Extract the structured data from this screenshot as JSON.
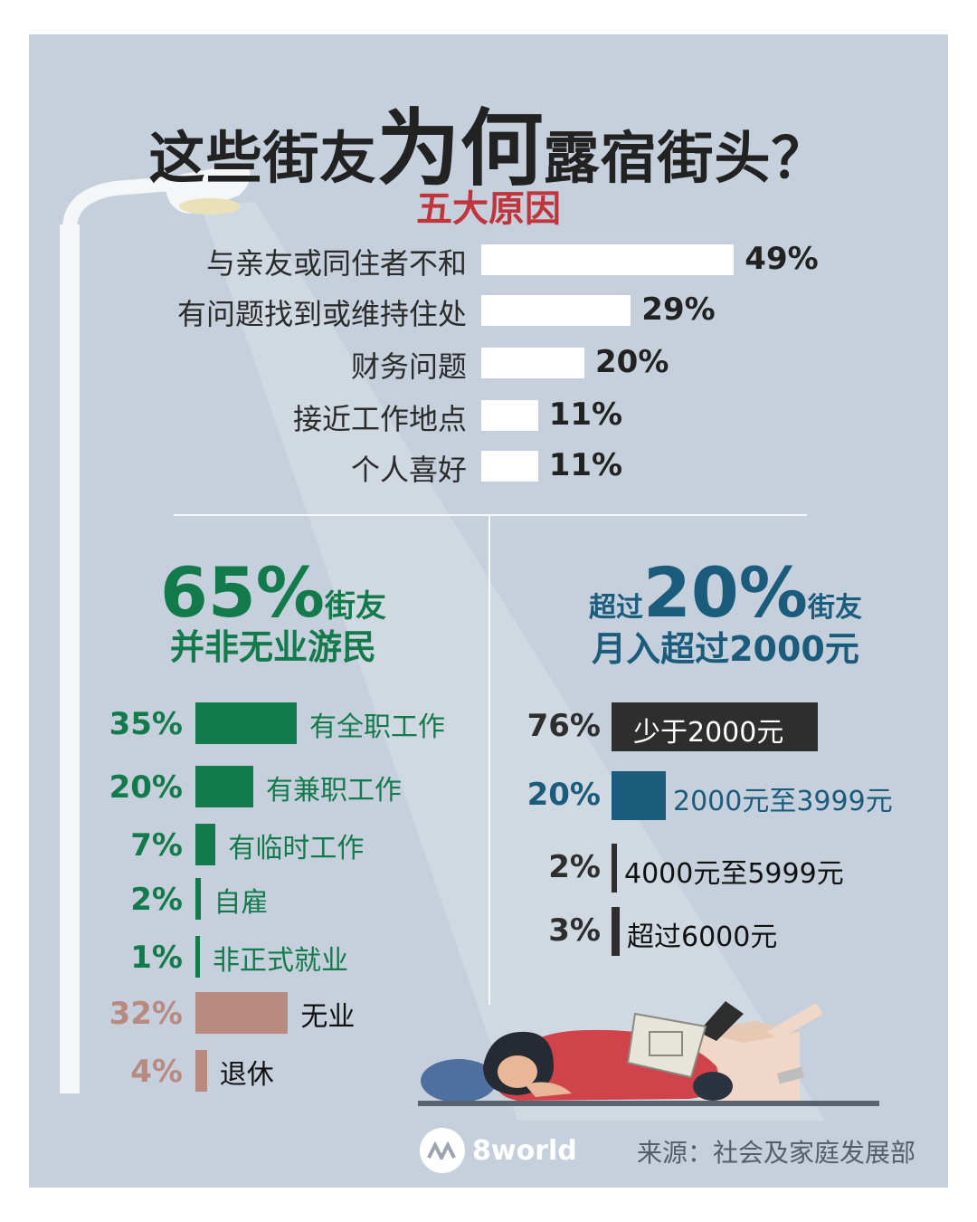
{
  "title": {
    "part1": "这些街友",
    "part2": "为何",
    "part3": "露宿街头？"
  },
  "subtitle": "五大原因",
  "colors": {
    "background": "#c6d0dc",
    "accent_red": "#c0343b",
    "employment_green": "#137a4c",
    "unemployed_pink": "#b98a80",
    "income_blue": "#1b5c7c",
    "income_dark": "#2e2e2e"
  },
  "chart_data": [
    {
      "type": "bar",
      "title": "五大原因",
      "categories": [
        "与亲友或同住者不和",
        "有问题找到或维持住处",
        "财务问题",
        "接近工作地点",
        "个人喜好"
      ],
      "values": [
        49,
        29,
        20,
        11,
        11
      ],
      "value_labels": [
        "49%",
        "29%",
        "20%",
        "11%",
        "11%"
      ],
      "orientation": "horizontal",
      "bar_color": "#ffffff"
    },
    {
      "type": "bar",
      "headline": {
        "value": "65%",
        "unit": "街友",
        "subtitle": "并非无业游民"
      },
      "categories": [
        "有全职工作",
        "有兼职工作",
        "有临时工作",
        "自雇",
        "非正式就业",
        "无业",
        "退休"
      ],
      "values": [
        35,
        20,
        7,
        2,
        1,
        32,
        4
      ],
      "value_labels": [
        "35%",
        "20%",
        "7%",
        "2%",
        "1%",
        "32%",
        "4%"
      ],
      "orientation": "horizontal"
    },
    {
      "type": "bar",
      "headline": {
        "prefix": "超过",
        "value": "20%",
        "unit": "街友",
        "subtitle": "月入超过2000元"
      },
      "categories": [
        "少于2000元",
        "2000元至3999元",
        "4000元至5999元",
        "超过6000元"
      ],
      "values": [
        76,
        20,
        2,
        3
      ],
      "value_labels": [
        "76%",
        "20%",
        "2%",
        "3%"
      ],
      "orientation": "horizontal"
    }
  ],
  "logo": {
    "text": "8world"
  },
  "source": "来源：社会及家庭发展部"
}
